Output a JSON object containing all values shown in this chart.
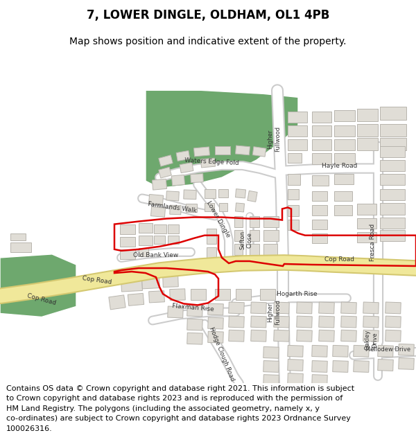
{
  "title_line1": "7, LOWER DINGLE, OLDHAM, OL1 4PB",
  "title_line2": "Map shows position and indicative extent of the property.",
  "footer": "Contains OS data © Crown copyright and database right 2021. This information is subject\nto Crown copyright and database rights 2023 and is reproduced with the permission of\nHM Land Registry. The polygons (including the associated geometry, namely x, y\nco-ordinates) are subject to Crown copyright and database rights 2023 Ordnance Survey\n100026316.",
  "map_bg": "#f7f6f2",
  "road_yellow": "#f0e89a",
  "road_yellow_outline": "#d4c870",
  "road_white": "#ffffff",
  "road_white_outline": "#cccccc",
  "green_color": "#6ea86e",
  "building_fill": "#e0ddd6",
  "building_edge": "#b8b5ae",
  "red_color": "#dd0000",
  "label_color": "#333333",
  "title_fontsize": 12,
  "subtitle_fontsize": 10,
  "footer_fontsize": 8
}
